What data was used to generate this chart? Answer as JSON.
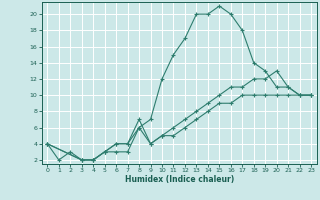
{
  "xlabel": "Humidex (Indice chaleur)",
  "bg_color": "#cce8e8",
  "grid_color": "#ffffff",
  "line_color": "#2e7d6e",
  "line_color2": "#1a5f52",
  "xlim": [
    -0.5,
    23.5
  ],
  "ylim": [
    1.5,
    21.5
  ],
  "xticks": [
    0,
    1,
    2,
    3,
    4,
    5,
    6,
    7,
    8,
    9,
    10,
    11,
    12,
    13,
    14,
    15,
    16,
    17,
    18,
    19,
    20,
    21,
    22,
    23
  ],
  "yticks": [
    2,
    4,
    6,
    8,
    10,
    12,
    14,
    16,
    18,
    20
  ],
  "line1_x": [
    0,
    1,
    2,
    3,
    4,
    5,
    6,
    7,
    8,
    9,
    10,
    11,
    12,
    13,
    14,
    15,
    16,
    17,
    18,
    19,
    20,
    21,
    22,
    23
  ],
  "line1_y": [
    4,
    2,
    3,
    2,
    2,
    3,
    4,
    4,
    6,
    7,
    12,
    15,
    17,
    20,
    20,
    21,
    20,
    18,
    14,
    13,
    11,
    11,
    10,
    10
  ],
  "line2_x": [
    0,
    3,
    4,
    5,
    6,
    7,
    8,
    9,
    10,
    11,
    12,
    13,
    14,
    15,
    16,
    17,
    18,
    19,
    20,
    21,
    22,
    23
  ],
  "line2_y": [
    4,
    2,
    2,
    3,
    4,
    4,
    7,
    4,
    5,
    6,
    7,
    8,
    9,
    10,
    11,
    11,
    12,
    12,
    13,
    11,
    10,
    10
  ],
  "line3_x": [
    0,
    3,
    4,
    5,
    6,
    7,
    8,
    9,
    10,
    11,
    12,
    13,
    14,
    15,
    16,
    17,
    18,
    19,
    20,
    21,
    22,
    23
  ],
  "line3_y": [
    4,
    2,
    2,
    3,
    3,
    3,
    6,
    4,
    5,
    5,
    6,
    7,
    8,
    9,
    9,
    10,
    10,
    10,
    10,
    10,
    10,
    10
  ]
}
